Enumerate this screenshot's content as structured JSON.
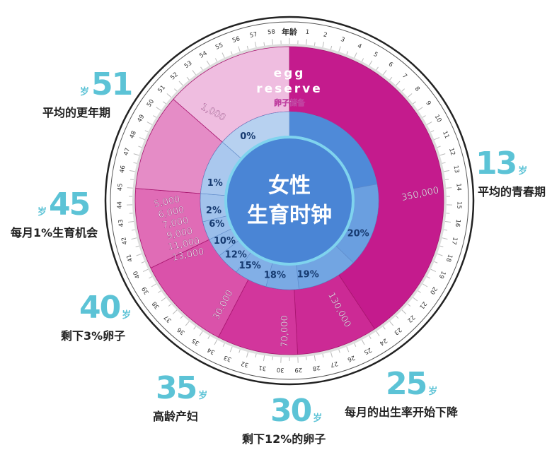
{
  "title": {
    "line1": "女性",
    "line2": "生育时钟"
  },
  "egg_reserve": {
    "en_line1": "egg",
    "en_line2": "reserve",
    "zh": "卵子储备"
  },
  "dial": {
    "label": "年龄",
    "ages": [
      1,
      2,
      3,
      4,
      5,
      6,
      7,
      8,
      9,
      10,
      11,
      12,
      13,
      14,
      15,
      16,
      17,
      18,
      19,
      20,
      21,
      22,
      23,
      24,
      25,
      26,
      27,
      28,
      29,
      30,
      31,
      32,
      33,
      34,
      35,
      36,
      37,
      38,
      39,
      40,
      41,
      42,
      43,
      44,
      45,
      46,
      47,
      48,
      49,
      50,
      51,
      52,
      53,
      54,
      55,
      56,
      57,
      58
    ]
  },
  "egg_counts": {
    "c350k": "350,000",
    "c130k": "130,000",
    "c70k": "70,000",
    "c30k": "30,000",
    "stack": [
      "5,000",
      "6,000",
      "7,000",
      "9,000",
      "11,000",
      "13,000"
    ],
    "c1k": "1,000"
  },
  "percentages": [
    "20%",
    "19%",
    "18%",
    "15%",
    "12%",
    "10%",
    "6%",
    "2%",
    "1%",
    "0%"
  ],
  "milestones": [
    {
      "age": "51",
      "unit": "岁",
      "text": "平均的更年期"
    },
    {
      "age": "13",
      "unit": "岁",
      "text": "平均的青春期"
    },
    {
      "age": "45",
      "unit": "岁",
      "text": "每月1%生育机会"
    },
    {
      "age": "40",
      "unit": "岁",
      "text": "剩下3%卵子"
    },
    {
      "age": "35",
      "unit": "岁",
      "text": "高龄产妇"
    },
    {
      "age": "30",
      "unit": "岁",
      "text": "剩下12%的卵子"
    },
    {
      "age": "25",
      "unit": "岁",
      "text": "每月的出生率开始下降"
    }
  ],
  "colors": {
    "accent_teal": "#5cc3d6",
    "magenta_dark": "#c41b8d",
    "pink_light": "#efbde0",
    "blue_center": "#4a85d5",
    "blue_light": "#b7d1f0"
  }
}
